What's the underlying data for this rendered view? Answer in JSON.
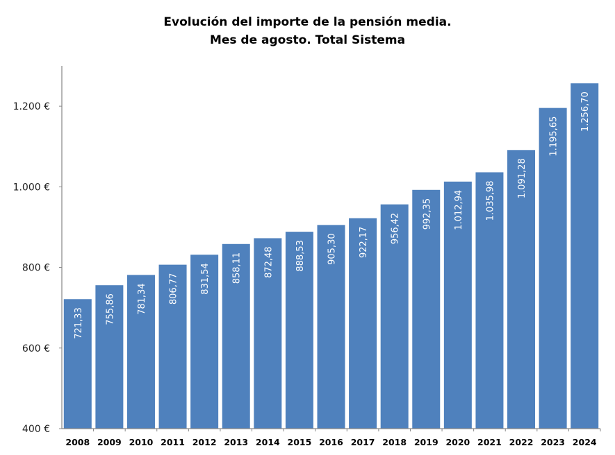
{
  "chart_data": {
    "type": "bar",
    "title": "Evolución del importe de la pensión media.",
    "subtitle": "Mes de agosto. Total Sistema",
    "xlabel": "",
    "ylabel": "",
    "categories": [
      "2008",
      "2009",
      "2010",
      "2011",
      "2012",
      "2013",
      "2014",
      "2015",
      "2016",
      "2017",
      "2018",
      "2019",
      "2020",
      "2021",
      "2022",
      "2023",
      "2024"
    ],
    "values": [
      721.33,
      755.86,
      781.34,
      806.77,
      831.54,
      858.11,
      872.48,
      888.53,
      905.3,
      922.17,
      956.42,
      992.35,
      1012.94,
      1035.98,
      1091.28,
      1195.65,
      1256.7
    ],
    "data_labels": [
      "721,33",
      "755,86",
      "781,34",
      "806,77",
      "831,54",
      "858,11",
      "872,48",
      "888,53",
      "905,30",
      "922,17",
      "956,42",
      "992,35",
      "1.012,94",
      "1.035,98",
      "1.091,28",
      "1.195,65",
      "1.256,70"
    ],
    "ylim": [
      400,
      1300
    ],
    "yticks": [
      400,
      600,
      800,
      1000,
      1200
    ],
    "ytick_labels": [
      "400 €",
      "600 €",
      "800 €",
      "1.000 €",
      "1.200 €"
    ],
    "grid": false,
    "legend": "none",
    "colors": {
      "bar": "#4F81BD",
      "label": "#FFFFFF",
      "axis": "#868686"
    }
  }
}
